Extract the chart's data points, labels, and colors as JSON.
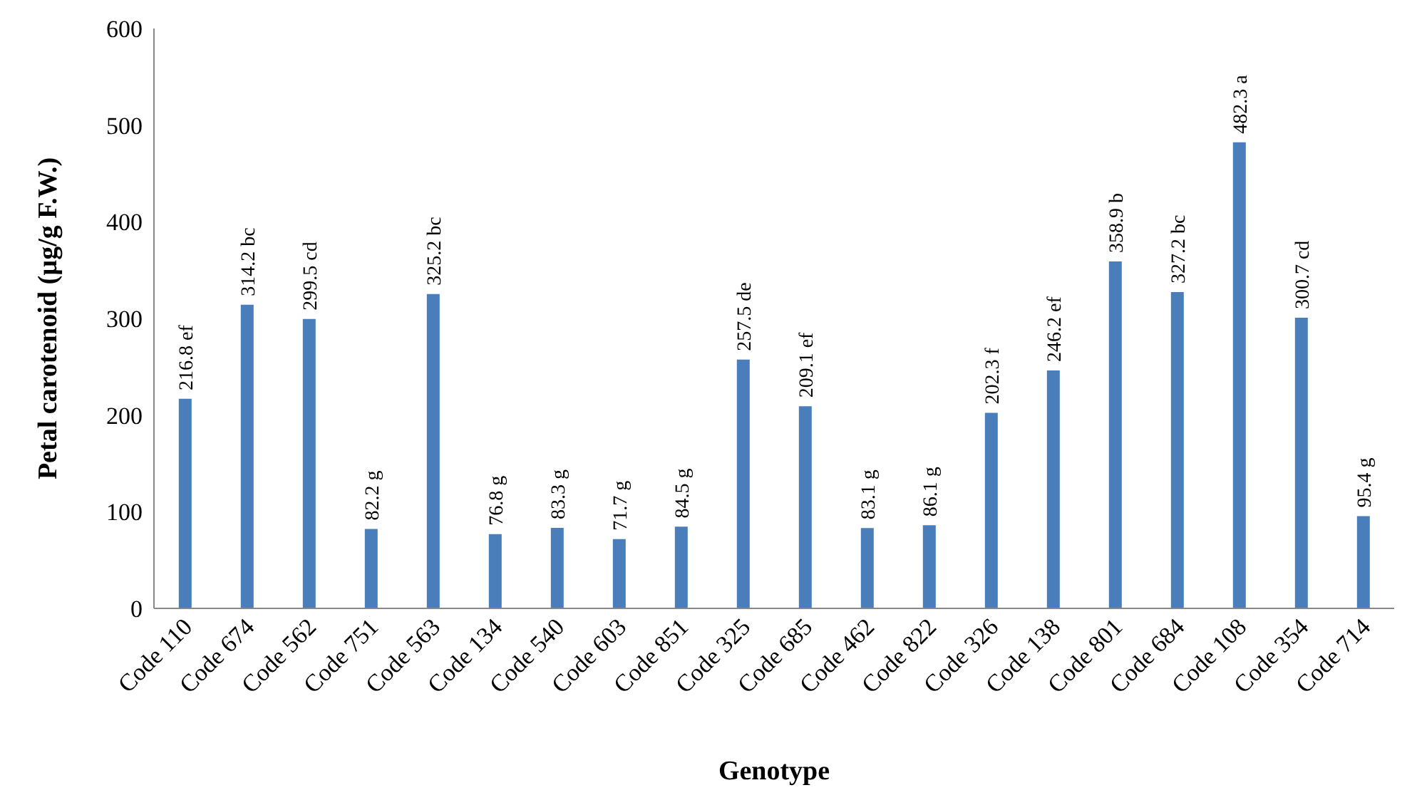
{
  "chart_data": {
    "type": "bar",
    "xlabel": "Genotype",
    "ylabel": "Petal carotenoid (µg/g F.W.)",
    "categories": [
      "Code 110",
      "Code 674",
      "Code 562",
      "Code 751",
      "Code 563",
      "Code 134",
      "Code 540",
      "Code 603",
      "Code 851",
      "Code 325",
      "Code 685",
      "Code 462",
      "Code 822",
      "Code 326",
      "Code 138",
      "Code 801",
      "Code 684",
      "Code 108",
      "Code 354",
      "Code 714"
    ],
    "values": [
      216.8,
      314.2,
      299.5,
      82.2,
      325.2,
      76.8,
      83.3,
      71.7,
      84.5,
      257.5,
      209.1,
      83.1,
      86.1,
      202.3,
      246.2,
      358.9,
      327.2,
      482.3,
      300.7,
      95.4
    ],
    "value_labels": [
      "216.8 ef",
      "314.2 bc",
      "299.5 cd",
      "82.2 g",
      "325.2 bc",
      "76.8 g",
      "83.3 g",
      "71.7 g",
      "84.5 g",
      "257.5 de",
      "209.1 ef",
      "83.1 g",
      "86.1 g",
      "202.3 f",
      "246.2 ef",
      "358.9 b",
      "327.2 bc",
      "482.3 a",
      "300.7 cd",
      "95.4 g"
    ],
    "color": "#4a7ebb",
    "ylim": [
      0,
      600
    ],
    "yticks": [
      0,
      100,
      200,
      300,
      400,
      500,
      600
    ],
    "grid": false,
    "legend": false
  }
}
